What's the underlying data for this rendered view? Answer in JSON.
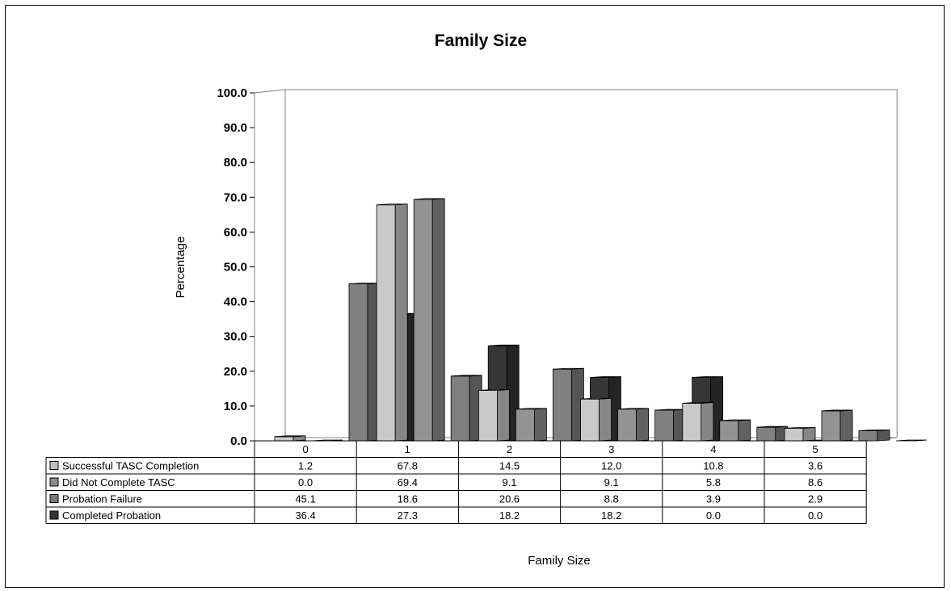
{
  "chart_data": {
    "type": "bar",
    "title": "Family Size",
    "xlabel": "Family Size",
    "ylabel": "Percentage",
    "ylim": [
      0,
      100
    ],
    "yticks": [
      "0.0",
      "10.0",
      "20.0",
      "30.0",
      "40.0",
      "50.0",
      "60.0",
      "70.0",
      "80.0",
      "90.0",
      "100.0"
    ],
    "categories": [
      "0",
      "1",
      "2",
      "3",
      "4",
      "5"
    ],
    "series": [
      {
        "name": "Successful TASC Completion",
        "color": "#bfbfbf",
        "values": [
          1.2,
          67.8,
          14.5,
          12.0,
          10.8,
          3.6
        ],
        "labels": [
          "1.2",
          "67.8",
          "14.5",
          "12.0",
          "10.8",
          "3.6"
        ]
      },
      {
        "name": "Did Not Complete TASC",
        "color": "#8c8c8c",
        "values": [
          0.0,
          69.4,
          9.1,
          9.1,
          5.8,
          8.6
        ],
        "labels": [
          "0.0",
          "69.4",
          "9.1",
          "9.1",
          "5.8",
          "8.6"
        ]
      },
      {
        "name": "Probation Failure",
        "color": "#7a7a7a",
        "values": [
          45.1,
          18.6,
          20.6,
          8.8,
          3.9,
          2.9
        ],
        "labels": [
          "45.1",
          "18.6",
          "20.6",
          "8.8",
          "3.9",
          "2.9"
        ]
      },
      {
        "name": "Completed Probation",
        "color": "#333333",
        "values": [
          36.4,
          27.3,
          18.2,
          18.2,
          0.0,
          0.0
        ],
        "labels": [
          "36.4",
          "27.3",
          "18.2",
          "18.2",
          "0.0",
          "0.0"
        ]
      }
    ],
    "grid": false,
    "legend": "data-table-left"
  }
}
